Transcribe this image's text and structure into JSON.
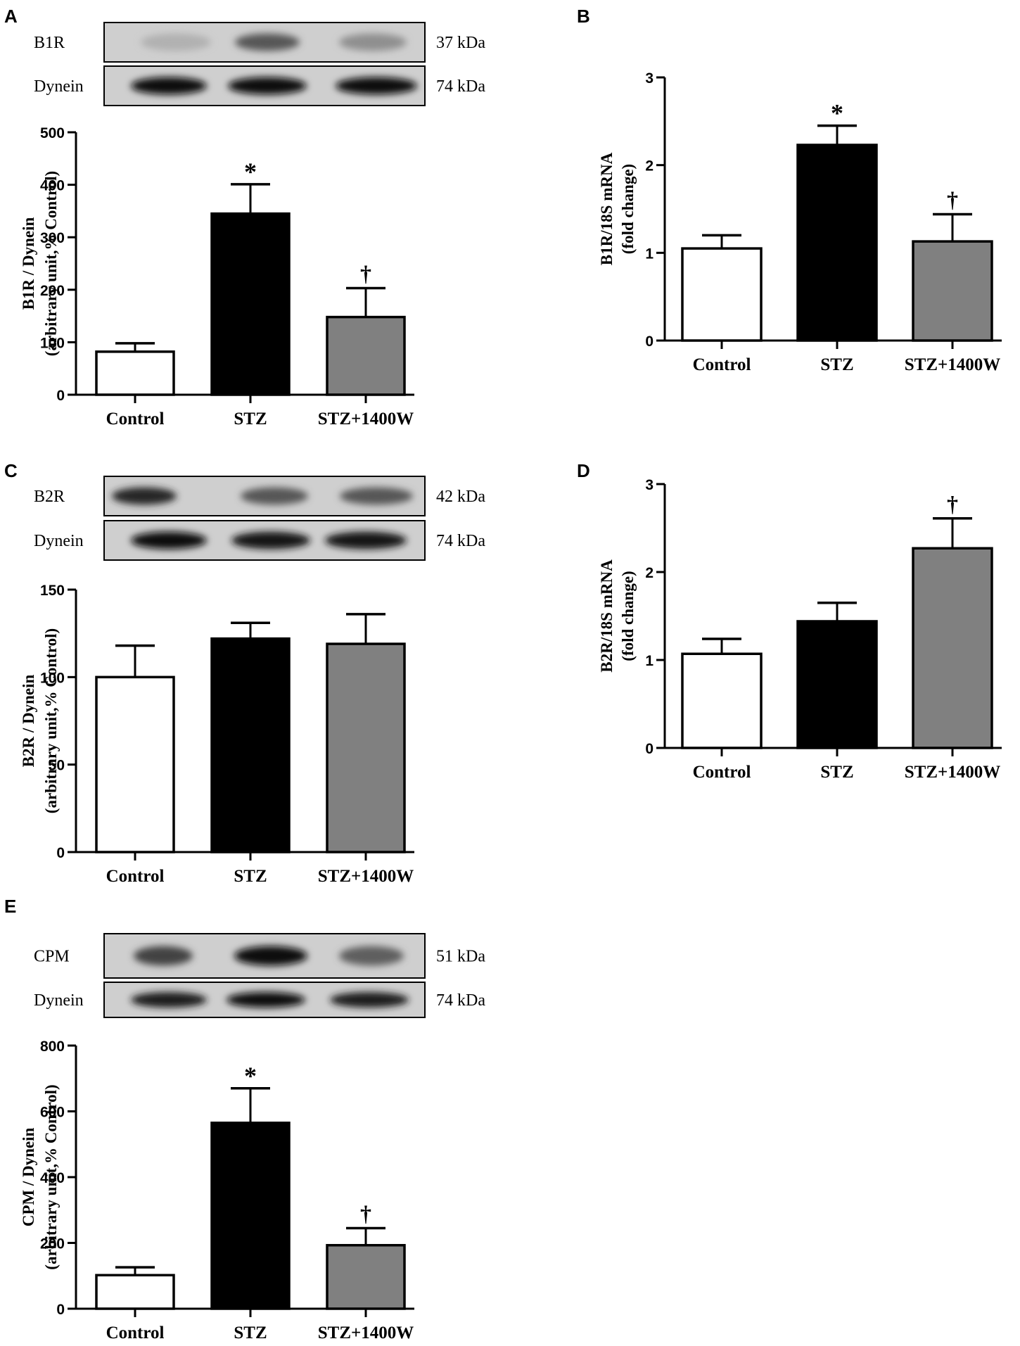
{
  "chart_data": [
    {
      "panel": "A",
      "type": "bar",
      "categories": [
        "Control",
        "STZ",
        "STZ+1400W"
      ],
      "values": [
        82,
        345,
        148
      ],
      "errors": [
        16,
        56,
        55
      ],
      "bar_colors": [
        "#ffffff",
        "#000000",
        "#808080"
      ],
      "significance": [
        "",
        "*",
        "†"
      ],
      "ylabel": [
        "B1R / Dynein",
        "(arbitrary unit,% Control)"
      ],
      "ylim": [
        0,
        500
      ],
      "yticks": [
        "0",
        "100",
        "200",
        "300",
        "400",
        "500"
      ],
      "blot": {
        "rows": [
          {
            "label": "B1R",
            "kda": "37 kDa"
          },
          {
            "label": "Dynein",
            "kda": "74 kDa"
          }
        ]
      }
    },
    {
      "panel": "B",
      "type": "bar",
      "categories": [
        "Control",
        "STZ",
        "STZ+1400W"
      ],
      "values": [
        1.05,
        2.23,
        1.13
      ],
      "errors": [
        0.15,
        0.22,
        0.31
      ],
      "bar_colors": [
        "#ffffff",
        "#000000",
        "#808080"
      ],
      "significance": [
        "",
        "*",
        "†"
      ],
      "ylabel": [
        "B1R/18S mRNA",
        "(fold change)"
      ],
      "ylim": [
        0,
        3
      ],
      "yticks": [
        "0",
        "1",
        "2",
        "3"
      ]
    },
    {
      "panel": "C",
      "type": "bar",
      "categories": [
        "Control",
        "STZ",
        "STZ+1400W"
      ],
      "values": [
        100,
        122,
        119
      ],
      "errors": [
        18,
        9,
        17
      ],
      "bar_colors": [
        "#ffffff",
        "#000000",
        "#808080"
      ],
      "significance": [
        "",
        "",
        ""
      ],
      "ylabel": [
        "B2R / Dynein",
        "(arbitrary unit,% Control)"
      ],
      "ylim": [
        0,
        150
      ],
      "yticks": [
        "0",
        "50",
        "100",
        "150"
      ],
      "blot": {
        "rows": [
          {
            "label": "B2R",
            "kda": "42 kDa"
          },
          {
            "label": "Dynein",
            "kda": "74 kDa"
          }
        ]
      }
    },
    {
      "panel": "D",
      "type": "bar",
      "categories": [
        "Control",
        "STZ",
        "STZ+1400W"
      ],
      "values": [
        1.07,
        1.44,
        2.27
      ],
      "errors": [
        0.17,
        0.21,
        0.34
      ],
      "bar_colors": [
        "#ffffff",
        "#000000",
        "#808080"
      ],
      "significance": [
        "",
        "",
        "†"
      ],
      "ylabel": [
        "B2R/18S mRNA",
        "(fold change)"
      ],
      "ylim": [
        0,
        3
      ],
      "yticks": [
        "0",
        "1",
        "2",
        "3"
      ]
    },
    {
      "panel": "E",
      "type": "bar",
      "categories": [
        "Control",
        "STZ",
        "STZ+1400W"
      ],
      "values": [
        102,
        565,
        193
      ],
      "errors": [
        24,
        105,
        52
      ],
      "bar_colors": [
        "#ffffff",
        "#000000",
        "#808080"
      ],
      "significance": [
        "",
        "*",
        "†"
      ],
      "ylabel": [
        "CPM / Dynein",
        "(arbitrary unit,% Control)"
      ],
      "ylim": [
        0,
        800
      ],
      "yticks": [
        "0",
        "200",
        "400",
        "600",
        "800"
      ],
      "blot": {
        "rows": [
          {
            "label": "CPM",
            "kda": "51 kDa"
          },
          {
            "label": "Dynein",
            "kda": "74 kDa"
          }
        ]
      }
    }
  ]
}
